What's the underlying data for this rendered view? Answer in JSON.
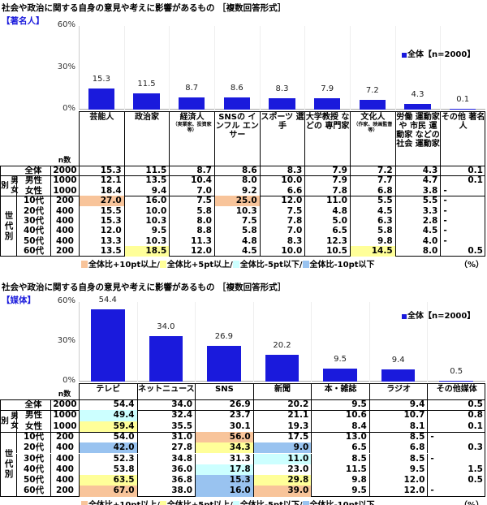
{
  "highlight_legend": [
    {
      "key": "p10",
      "label": "全体比+10pt以上/",
      "color": "#f8c49a"
    },
    {
      "key": "p5",
      "label": "全体比+5pt以上/",
      "color": "#ffff99"
    },
    {
      "key": "m5",
      "label": "全体比-5pt以下/",
      "color": "#ccffff"
    },
    {
      "key": "m10",
      "label": "全体比-10pt以下",
      "color": "#99c3f0"
    }
  ],
  "unit": "（%）",
  "n_header": "n数",
  "bar_color": "#1a1adc",
  "chart_data": [
    {
      "type": "bar",
      "title": "社会や政治に関する自身の意見や考えに影響があるもの ［複数回答形式］",
      "subtitle": "【著名人】",
      "ylim": [
        0,
        60
      ],
      "yticks": [
        "0%",
        "30%",
        "60%"
      ],
      "legend": "全体【n=2000】",
      "legend_position": "top-right",
      "categories": [
        {
          "label": "芸能人"
        },
        {
          "label": "政治家"
        },
        {
          "label": "経済人",
          "note": "（実業家、投資家等）"
        },
        {
          "label": "SNSの インフル エンサー"
        },
        {
          "label": "スポーツ 選手"
        },
        {
          "label": "大学教授 などの 専門家"
        },
        {
          "label": "文化人",
          "note": "（作家、映画監督等）"
        },
        {
          "label": "労働 運動家や 市民 運動家 などの社会 運動家"
        },
        {
          "label": "その他 著名人"
        }
      ],
      "values": [
        15.3,
        11.5,
        8.7,
        8.6,
        8.3,
        7.9,
        7.2,
        4.3,
        0.1
      ],
      "table": {
        "groups": [
          {
            "label": "男女別",
            "rows": [
              1,
              2
            ]
          },
          {
            "label": "世代別",
            "rows": [
              3,
              4,
              5,
              6,
              7,
              8
            ]
          }
        ],
        "rows": [
          {
            "label": "全体",
            "n": "2000",
            "values": [
              "15.3",
              "11.5",
              "8.7",
              "8.6",
              "8.3",
              "7.9",
              "7.2",
              "4.3",
              "0.1"
            ],
            "hl": [
              null,
              null,
              null,
              null,
              null,
              null,
              null,
              null,
              null
            ]
          },
          {
            "label": "男性",
            "n": "1000",
            "values": [
              "12.1",
              "13.5",
              "10.4",
              "8.0",
              "10.0",
              "7.9",
              "7.7",
              "4.7",
              "0.1"
            ],
            "hl": [
              null,
              null,
              null,
              null,
              null,
              null,
              null,
              null,
              null
            ]
          },
          {
            "label": "女性",
            "n": "1000",
            "values": [
              "18.4",
              "9.4",
              "7.0",
              "9.2",
              "6.6",
              "7.8",
              "6.8",
              "3.8",
              "-"
            ],
            "hl": [
              null,
              null,
              null,
              null,
              null,
              null,
              null,
              null,
              null
            ]
          },
          {
            "label": "10代",
            "n": "200",
            "values": [
              "27.0",
              "16.0",
              "7.5",
              "25.0",
              "12.0",
              "11.0",
              "5.5",
              "5.5",
              "-"
            ],
            "hl": [
              "p10",
              null,
              null,
              "p10",
              null,
              null,
              null,
              null,
              null
            ]
          },
          {
            "label": "20代",
            "n": "400",
            "values": [
              "15.5",
              "10.0",
              "5.8",
              "10.3",
              "7.5",
              "4.8",
              "4.5",
              "3.3",
              "-"
            ],
            "hl": [
              null,
              null,
              null,
              null,
              null,
              null,
              null,
              null,
              null
            ]
          },
          {
            "label": "30代",
            "n": "400",
            "values": [
              "15.3",
              "10.3",
              "8.0",
              "7.5",
              "7.8",
              "5.0",
              "6.3",
              "2.8",
              "-"
            ],
            "hl": [
              null,
              null,
              null,
              null,
              null,
              null,
              null,
              null,
              null
            ]
          },
          {
            "label": "40代",
            "n": "400",
            "values": [
              "12.0",
              "9.5",
              "8.8",
              "5.8",
              "7.0",
              "6.5",
              "5.8",
              "4.5",
              "-"
            ],
            "hl": [
              null,
              null,
              null,
              null,
              null,
              null,
              null,
              null,
              null
            ]
          },
          {
            "label": "50代",
            "n": "400",
            "values": [
              "13.3",
              "10.3",
              "11.3",
              "4.8",
              "8.3",
              "12.3",
              "9.8",
              "4.0",
              "-"
            ],
            "hl": [
              null,
              null,
              null,
              null,
              null,
              null,
              null,
              null,
              null
            ]
          },
          {
            "label": "60代",
            "n": "200",
            "values": [
              "13.5",
              "18.5",
              "12.0",
              "4.5",
              "10.0",
              "10.5",
              "14.5",
              "8.0",
              "0.5"
            ],
            "hl": [
              null,
              "p5",
              null,
              null,
              null,
              null,
              "p5",
              null,
              null
            ]
          }
        ]
      }
    },
    {
      "type": "bar",
      "title": "社会や政治に関する自身の意見や考えに影響があるもの ［複数回答形式］",
      "subtitle": "【媒体】",
      "ylim": [
        0,
        60
      ],
      "yticks": [
        "0%",
        "30%",
        "60%"
      ],
      "legend": "全体【n=2000】",
      "legend_position": "top-right",
      "categories": [
        {
          "label": "テレビ"
        },
        {
          "label": "ネットニュース"
        },
        {
          "label": "SNS"
        },
        {
          "label": "新聞"
        },
        {
          "label": "本・雑誌"
        },
        {
          "label": "ラジオ"
        },
        {
          "label": "その他媒体"
        }
      ],
      "values": [
        54.4,
        34.0,
        26.9,
        20.2,
        9.5,
        9.4,
        0.5
      ],
      "table": {
        "groups": [
          {
            "label": "男女別",
            "rows": [
              1,
              2
            ]
          },
          {
            "label": "世代別",
            "rows": [
              3,
              4,
              5,
              6,
              7,
              8
            ]
          }
        ],
        "rows": [
          {
            "label": "全体",
            "n": "2000",
            "values": [
              "54.4",
              "34.0",
              "26.9",
              "20.2",
              "9.5",
              "9.4",
              "0.5"
            ],
            "hl": [
              null,
              null,
              null,
              null,
              null,
              null,
              null
            ]
          },
          {
            "label": "男性",
            "n": "1000",
            "values": [
              "49.4",
              "32.4",
              "23.7",
              "21.1",
              "10.6",
              "10.7",
              "0.8"
            ],
            "hl": [
              "m5",
              null,
              null,
              null,
              null,
              null,
              null
            ]
          },
          {
            "label": "女性",
            "n": "1000",
            "values": [
              "59.4",
              "35.5",
              "30.1",
              "19.3",
              "8.4",
              "8.1",
              "0.1"
            ],
            "hl": [
              "p5",
              null,
              null,
              null,
              null,
              null,
              null
            ]
          },
          {
            "label": "10代",
            "n": "200",
            "values": [
              "54.0",
              "31.0",
              "56.0",
              "17.5",
              "13.0",
              "8.5",
              "-"
            ],
            "hl": [
              null,
              null,
              "p10",
              null,
              null,
              null,
              null
            ]
          },
          {
            "label": "20代",
            "n": "400",
            "values": [
              "42.0",
              "27.8",
              "34.3",
              "9.0",
              "6.5",
              "6.8",
              "0.3"
            ],
            "hl": [
              "m10",
              null,
              "p5",
              "m10",
              null,
              null,
              null
            ]
          },
          {
            "label": "30代",
            "n": "400",
            "values": [
              "52.3",
              "34.8",
              "31.3",
              "11.0",
              "8.5",
              "8.5",
              "-"
            ],
            "hl": [
              null,
              null,
              null,
              "m5",
              null,
              null,
              null
            ]
          },
          {
            "label": "40代",
            "n": "400",
            "values": [
              "53.8",
              "36.0",
              "17.8",
              "23.0",
              "11.5",
              "9.5",
              "1.5"
            ],
            "hl": [
              null,
              null,
              "m5",
              null,
              null,
              null,
              null
            ]
          },
          {
            "label": "50代",
            "n": "400",
            "values": [
              "63.5",
              "36.8",
              "15.3",
              "29.8",
              "9.8",
              "12.0",
              "0.5"
            ],
            "hl": [
              "p5",
              null,
              "m10",
              "p5",
              null,
              null,
              null
            ]
          },
          {
            "label": "60代",
            "n": "200",
            "values": [
              "67.0",
              "38.0",
              "16.0",
              "39.0",
              "9.5",
              "12.0",
              "-"
            ],
            "hl": [
              "p10",
              null,
              "m10",
              "p10",
              null,
              null,
              null
            ]
          }
        ]
      }
    }
  ]
}
